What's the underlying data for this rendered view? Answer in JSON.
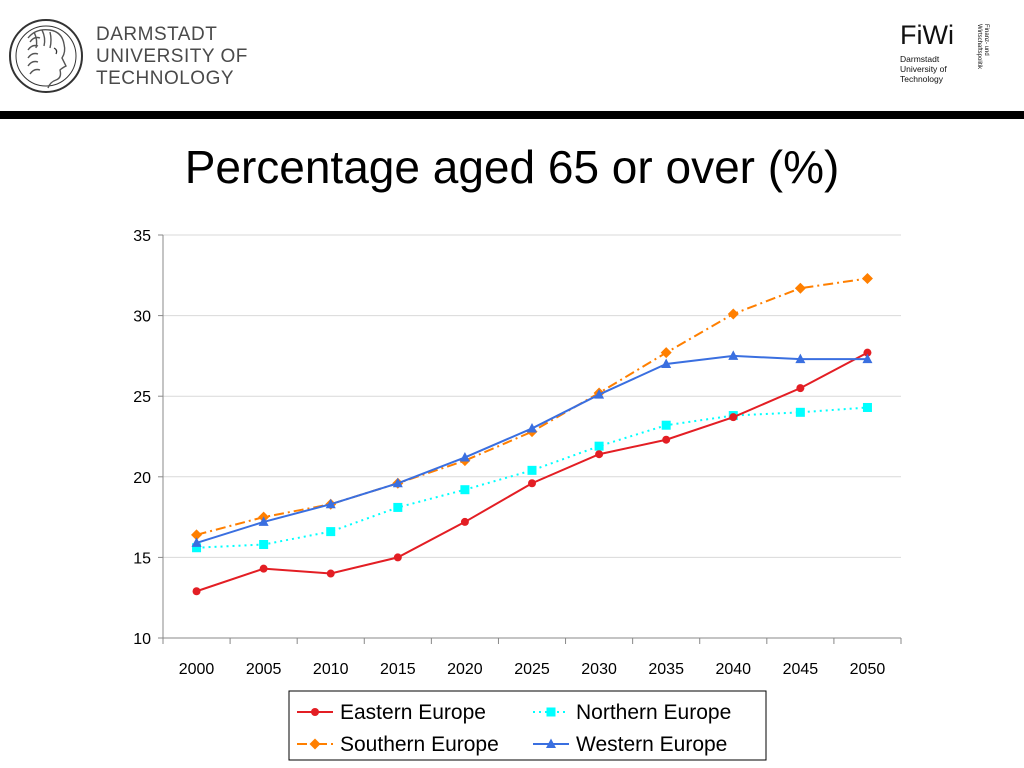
{
  "header": {
    "university_lines": [
      "DARMSTADT",
      "UNIVERSITY OF",
      "TECHNOLOGY"
    ],
    "fiwi_logo": "FiWi",
    "fiwi_sub_lines": [
      "Darmstadt",
      "University of",
      "Technology"
    ],
    "fiwi_vertical_lines": [
      "Finanz- und",
      "Wirtschaftspolitik"
    ],
    "seal_icon": "university-seal-icon"
  },
  "slide": {
    "title": "Percentage aged 65 or over (%)"
  },
  "chart_data": {
    "type": "line",
    "title": "",
    "xlabel": "",
    "ylabel": "",
    "categories": [
      "2000",
      "2005",
      "2010",
      "2015",
      "2020",
      "2025",
      "2030",
      "2035",
      "2040",
      "2045",
      "2050"
    ],
    "ylim": [
      10,
      35
    ],
    "yticks": [
      10,
      15,
      20,
      25,
      30,
      35
    ],
    "grid": true,
    "legend_position": "bottom",
    "series": [
      {
        "name": "Eastern Europe",
        "color": "#e31e24",
        "marker": "circle",
        "dash": "solid",
        "values": [
          12.9,
          14.3,
          14.0,
          15.0,
          17.2,
          19.6,
          21.4,
          22.3,
          23.7,
          25.5,
          27.7
        ]
      },
      {
        "name": "Northern Europe",
        "color": "#00ffff",
        "marker": "square",
        "dash": "dotted",
        "values": [
          15.6,
          15.8,
          16.6,
          18.1,
          19.2,
          20.4,
          21.9,
          23.2,
          23.8,
          24.0,
          24.3
        ]
      },
      {
        "name": "Southern Europe",
        "color": "#ff7f00",
        "marker": "diamond",
        "dash": "dashdot",
        "values": [
          16.4,
          17.5,
          18.3,
          19.6,
          21.0,
          22.8,
          25.2,
          27.7,
          30.1,
          31.7,
          32.3
        ]
      },
      {
        "name": "Western Europe",
        "color": "#3a6fe0",
        "marker": "triangle",
        "dash": "solid",
        "values": [
          15.9,
          17.2,
          18.3,
          19.6,
          21.2,
          23.0,
          25.1,
          27.0,
          27.5,
          27.3,
          27.3
        ]
      }
    ]
  }
}
